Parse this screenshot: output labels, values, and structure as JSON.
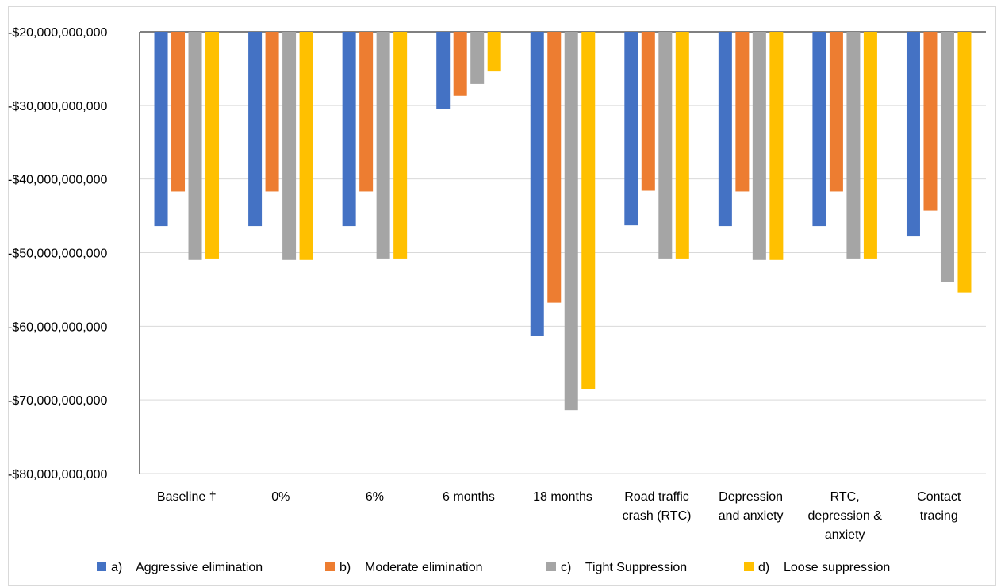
{
  "chart_data": {
    "type": "bar",
    "title": "",
    "xlabel": "",
    "ylabel": "",
    "ylim": [
      -80000000000,
      -20000000000
    ],
    "y_ticks": [
      {
        "value": -20000000000,
        "label": "-$20,000,000,000"
      },
      {
        "value": -30000000000,
        "label": "-$30,000,000,000"
      },
      {
        "value": -40000000000,
        "label": "-$40,000,000,000"
      },
      {
        "value": -50000000000,
        "label": "-$50,000,000,000"
      },
      {
        "value": -60000000000,
        "label": "-$60,000,000,000"
      },
      {
        "value": -70000000000,
        "label": "-$70,000,000,000"
      },
      {
        "value": -80000000000,
        "label": "-$80,000,000,000"
      }
    ],
    "categories": [
      [
        "Baseline †"
      ],
      [
        "0%"
      ],
      [
        "6%"
      ],
      [
        "6 months"
      ],
      [
        "18 months"
      ],
      [
        "Road traffic",
        "crash (RTC)"
      ],
      [
        "Depression",
        "and anxiety"
      ],
      [
        "RTC,",
        "depression &",
        "anxiety"
      ],
      [
        "Contact",
        "tracing"
      ]
    ],
    "grid": true,
    "legend_position": "bottom",
    "series": [
      {
        "name": "a)    Aggressive elimination",
        "color": "#4472C4",
        "values": [
          -46400000000,
          -46400000000,
          -46400000000,
          -30500000000,
          -61300000000,
          -46300000000,
          -46400000000,
          -46400000000,
          -47800000000
        ]
      },
      {
        "name": "b)    Moderate elimination",
        "color": "#ED7D31",
        "values": [
          -41700000000,
          -41700000000,
          -41700000000,
          -28700000000,
          -56800000000,
          -41600000000,
          -41700000000,
          -41700000000,
          -44300000000
        ]
      },
      {
        "name": "c)    Tight Suppression",
        "color": "#A5A5A5",
        "values": [
          -51000000000,
          -51000000000,
          -50800000000,
          -27100000000,
          -71400000000,
          -50800000000,
          -51000000000,
          -50800000000,
          -54000000000
        ]
      },
      {
        "name": "d)    Loose suppression",
        "color": "#FFC000",
        "values": [
          -50800000000,
          -51000000000,
          -50800000000,
          -25400000000,
          -68500000000,
          -50800000000,
          -51000000000,
          -50800000000,
          -55400000000
        ]
      }
    ]
  }
}
